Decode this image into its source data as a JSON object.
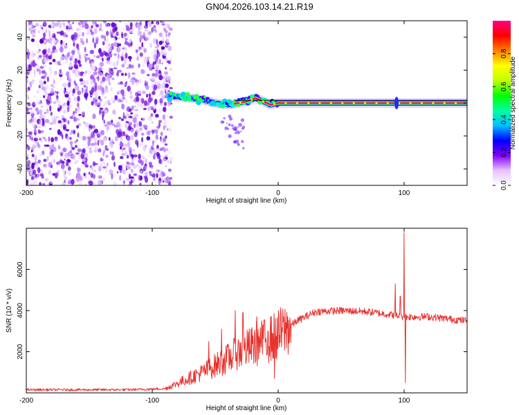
{
  "chart_data": [
    {
      "type": "heatmap",
      "title": "GN04.2026.103.14.21.R19",
      "xlabel": "Height of straight line (km)",
      "ylabel": "Frequency (Hz)",
      "xlim": [
        -200,
        150
      ],
      "ylim": [
        -50,
        50
      ],
      "xticks": [
        -200,
        -100,
        0,
        100
      ],
      "yticks": [
        -40,
        -20,
        0,
        20,
        40
      ],
      "noise_region": {
        "x": [
          -200,
          -85
        ],
        "y": [
          -50,
          50
        ]
      },
      "signal_track": [
        {
          "x": -88,
          "y": 4
        },
        {
          "x": -80,
          "y": 4
        },
        {
          "x": -70,
          "y": 3
        },
        {
          "x": -60,
          "y": 2
        },
        {
          "x": -50,
          "y": 0
        },
        {
          "x": -40,
          "y": -1
        },
        {
          "x": -32,
          "y": 0
        },
        {
          "x": -25,
          "y": 1
        },
        {
          "x": -18,
          "y": 3
        },
        {
          "x": -12,
          "y": 1
        },
        {
          "x": -6,
          "y": -1
        },
        {
          "x": 0,
          "y": 0
        },
        {
          "x": 20,
          "y": 0
        },
        {
          "x": 60,
          "y": 0
        },
        {
          "x": 95,
          "y": 0
        },
        {
          "x": 100,
          "y": 0
        },
        {
          "x": 150,
          "y": 0
        }
      ],
      "colorbar": {
        "label": "Normalized spectral amplitude",
        "range": [
          0,
          1
        ],
        "ticks": [
          "0.0",
          "0.2",
          "0.4",
          "0.6",
          "0.8"
        ],
        "colors": [
          "#ffffff",
          "#e8c0ff",
          "#8000ff",
          "#0000ff",
          "#00c0ff",
          "#00ffa0",
          "#00ff00",
          "#c0ff00",
          "#ffff00",
          "#ff8000",
          "#ff0000",
          "#ff0080"
        ]
      }
    },
    {
      "type": "line",
      "xlabel": "Height of straight line (km)",
      "ylabel": "SNR (10 * v/v)",
      "xlim": [
        -200,
        150
      ],
      "ylim": [
        0,
        8000
      ],
      "xticks": [
        -200,
        -100,
        0,
        100
      ],
      "yticks": [
        2000,
        4000,
        6000
      ],
      "series": [
        {
          "name": "SNR",
          "color": "#e8322e",
          "envelope": [
            {
              "x": -200,
              "y": 150
            },
            {
              "x": -120,
              "y": 150
            },
            {
              "x": -90,
              "y": 200
            },
            {
              "x": -75,
              "y": 600
            },
            {
              "x": -60,
              "y": 1000
            },
            {
              "x": -45,
              "y": 1500
            },
            {
              "x": -30,
              "y": 2000
            },
            {
              "x": -15,
              "y": 2400
            },
            {
              "x": 0,
              "y": 2800
            },
            {
              "x": 15,
              "y": 3500
            },
            {
              "x": 30,
              "y": 3950
            },
            {
              "x": 50,
              "y": 4000
            },
            {
              "x": 70,
              "y": 3950
            },
            {
              "x": 90,
              "y": 3800
            },
            {
              "x": 100,
              "y": 3700
            },
            {
              "x": 120,
              "y": 3700
            },
            {
              "x": 150,
              "y": 3500
            }
          ],
          "spikes": [
            {
              "x": -55,
              "y": 2500
            },
            {
              "x": -45,
              "y": 3100
            },
            {
              "x": -34,
              "y": 4000
            },
            {
              "x": -28,
              "y": 3900
            },
            {
              "x": -17,
              "y": 3700
            },
            {
              "x": -12,
              "y": 3300
            },
            {
              "x": -8,
              "y": 3000
            },
            {
              "x": -3,
              "y": 700
            },
            {
              "x": 93,
              "y": 5300
            },
            {
              "x": 97,
              "y": 4700
            },
            {
              "x": 100,
              "y": 7800
            },
            {
              "x": 101,
              "y": 500
            }
          ]
        }
      ]
    }
  ]
}
